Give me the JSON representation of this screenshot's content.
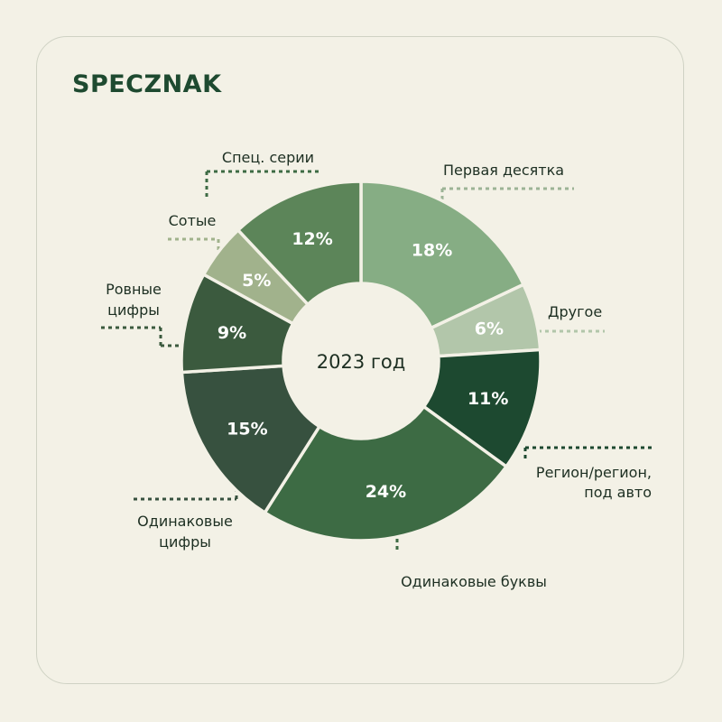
{
  "brand": "SPECZNAK",
  "chart_data": {
    "type": "pie",
    "variant": "donut",
    "center_label": "2023 год",
    "slices": [
      {
        "label": "Первая десятка",
        "value": 18,
        "display": "18%",
        "color": "#86ad84"
      },
      {
        "label": "Другое",
        "value": 6,
        "display": "6%",
        "color": "#b2c6aa"
      },
      {
        "label": "Регион/регион, под авто",
        "value": 11,
        "display": "11%",
        "color": "#1d4930"
      },
      {
        "label": "Одинаковые буквы",
        "value": 24,
        "display": "24%",
        "color": "#3d6b44"
      },
      {
        "label": "Одинаковые цифры",
        "value": 15,
        "display": "15%",
        "color": "#37513f"
      },
      {
        "label": "Ровные цифры",
        "value": 9,
        "display": "9%",
        "color": "#3b5a3e"
      },
      {
        "label": "Сотые",
        "value": 5,
        "display": "5%",
        "color": "#a1b28c"
      },
      {
        "label": "Спец. серии",
        "value": 12,
        "display": "12%",
        "color": "#5c8559"
      }
    ],
    "legend_placement": "callouts around ring"
  }
}
